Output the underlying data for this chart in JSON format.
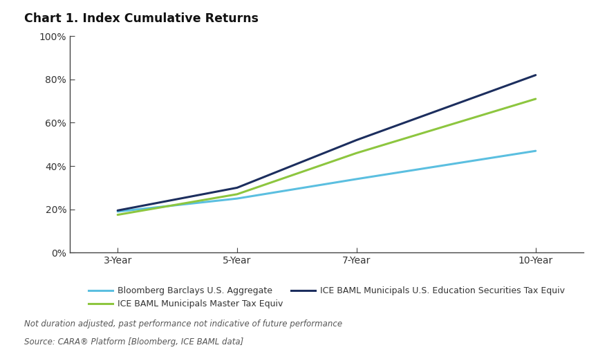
{
  "title": "Chart 1. Index Cumulative Returns",
  "x_labels": [
    "3-Year",
    "5-Year",
    "7-Year",
    "10-Year"
  ],
  "x_values": [
    3,
    5,
    7,
    10
  ],
  "series": [
    {
      "name": "Bloomberg Barclays U.S. Aggregate",
      "color": "#5bbfe0",
      "values": [
        0.19,
        0.25,
        0.34,
        0.47
      ],
      "linewidth": 2.2
    },
    {
      "name": "ICE BAML Municipals Master Tax Equiv",
      "color": "#8dc63f",
      "values": [
        0.175,
        0.27,
        0.46,
        0.71
      ],
      "linewidth": 2.2
    },
    {
      "name": "ICE BAML Municipals U.S. Education Securities Tax Equiv",
      "color": "#1c2e5e",
      "values": [
        0.195,
        0.3,
        0.52,
        0.82
      ],
      "linewidth": 2.2
    }
  ],
  "ylim": [
    0,
    1.0
  ],
  "yticks": [
    0.0,
    0.2,
    0.4,
    0.6,
    0.8,
    1.0
  ],
  "ytick_labels": [
    "0%",
    "20%",
    "40%",
    "60%",
    "80%",
    "100%"
  ],
  "footnote1": "Not duration adjusted, past performance not indicative of future performance",
  "footnote2": "Source: CARA® Platform [Bloomberg, ICE BAML data]",
  "background_color": "#ffffff"
}
